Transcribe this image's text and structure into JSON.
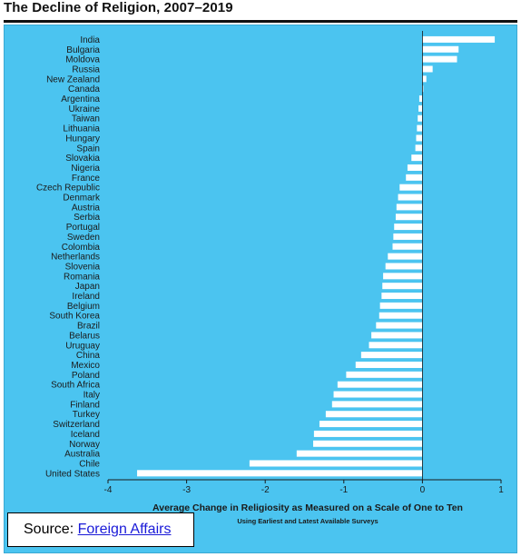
{
  "header": {
    "title": "The Decline of Religion, 2007–2019"
  },
  "source": {
    "prefix": "Source: ",
    "link_text": "Foreign Affairs"
  },
  "colors": {
    "background": "#4bc4f0",
    "bar": "#ffffff",
    "text": "#1a1a1a"
  },
  "chart_data": {
    "type": "bar",
    "orientation": "horizontal",
    "title": "The Decline of Religion, 2007–2019",
    "xlabel": "Average Change in Religiosity as Measured on a Scale of One to Ten",
    "xlabel_sub": "Using Earliest and Latest Available Surveys",
    "ylabel": "",
    "xlim": [
      -4,
      1
    ],
    "xticks": [
      -4,
      -3,
      -2,
      -1,
      0,
      1
    ],
    "grid": false,
    "categories": [
      "India",
      "Bulgaria",
      "Moldova",
      "Russia",
      "New Zealand",
      "Canada",
      "Argentina",
      "Ukraine",
      "Taiwan",
      "Lithuania",
      "Hungary",
      "Spain",
      "Slovakia",
      "Nigeria",
      "France",
      "Czech Republic",
      "Denmark",
      "Austria",
      "Serbia",
      "Portugal",
      "Sweden",
      "Colombia",
      "Netherlands",
      "Slovenia",
      "Romania",
      "Japan",
      "Ireland",
      "Belgium",
      "South Korea",
      "Brazil",
      "Belarus",
      "Uruguay",
      "China",
      "Mexico",
      "Poland",
      "South Africa",
      "Italy",
      "Finland",
      "Turkey",
      "Switzerland",
      "Iceland",
      "Norway",
      "Australia",
      "Chile",
      "United States"
    ],
    "values": [
      0.92,
      0.46,
      0.44,
      0.13,
      0.05,
      0.01,
      -0.04,
      -0.05,
      -0.06,
      -0.07,
      -0.08,
      -0.09,
      -0.14,
      -0.19,
      -0.21,
      -0.29,
      -0.31,
      -0.33,
      -0.34,
      -0.36,
      -0.37,
      -0.38,
      -0.44,
      -0.47,
      -0.5,
      -0.51,
      -0.52,
      -0.54,
      -0.55,
      -0.59,
      -0.65,
      -0.68,
      -0.78,
      -0.85,
      -0.97,
      -1.08,
      -1.13,
      -1.15,
      -1.23,
      -1.31,
      -1.38,
      -1.39,
      -1.6,
      -2.2,
      -3.63
    ]
  }
}
